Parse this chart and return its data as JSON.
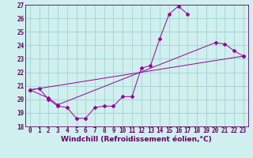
{
  "background_color": "#cff0ee",
  "line_color": "#990099",
  "grid_color": "#99cccc",
  "xlabel": "Windchill (Refroidissement éolien,°C)",
  "xlim": [
    -0.5,
    23.5
  ],
  "ylim": [
    18,
    27
  ],
  "xticks": [
    0,
    1,
    2,
    3,
    4,
    5,
    6,
    7,
    8,
    9,
    10,
    11,
    12,
    13,
    14,
    15,
    16,
    17,
    18,
    19,
    20,
    21,
    22,
    23
  ],
  "yticks": [
    18,
    19,
    20,
    21,
    22,
    23,
    24,
    25,
    26,
    27
  ],
  "series1_x": [
    0,
    1,
    2,
    3,
    4,
    5,
    6,
    7,
    8,
    9,
    10,
    11,
    12,
    13,
    14,
    15,
    16,
    17
  ],
  "series1_y": [
    20.7,
    20.8,
    20.0,
    19.5,
    19.4,
    18.6,
    18.6,
    19.4,
    19.5,
    19.5,
    20.2,
    20.2,
    22.3,
    22.5,
    24.5,
    26.3,
    26.9,
    26.3
  ],
  "series2_x": [
    0,
    2,
    3,
    20,
    21,
    22,
    23
  ],
  "series2_y": [
    20.7,
    20.1,
    19.6,
    24.2,
    24.1,
    23.6,
    23.2
  ],
  "series3_x": [
    0,
    23
  ],
  "series3_y": [
    20.7,
    23.2
  ],
  "fontsize_tick": 5.5,
  "fontsize_xlabel": 6.5
}
